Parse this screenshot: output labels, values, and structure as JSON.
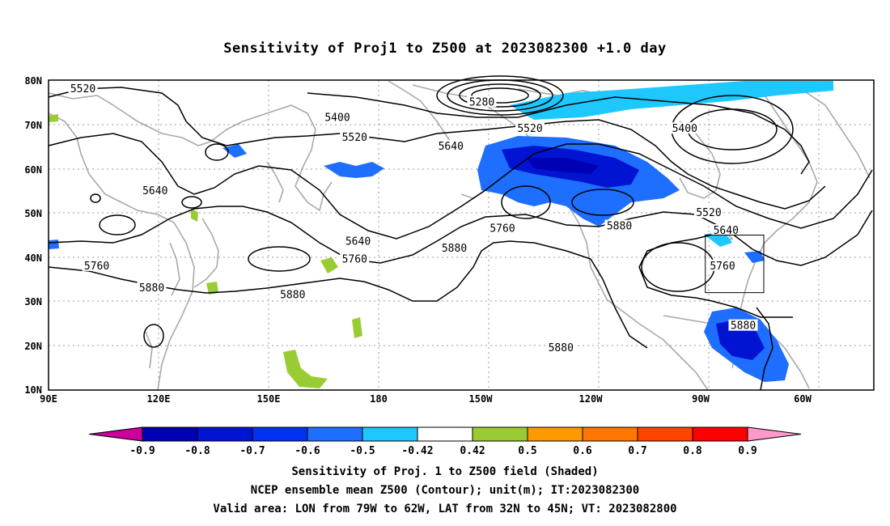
{
  "title": "Sensitivity of Proj1 to Z500 at 2023082300 +1.0 day",
  "axes": {
    "lat_labels": [
      "80N",
      "70N",
      "60N",
      "50N",
      "40N",
      "30N",
      "20N",
      "10N"
    ],
    "lon_labels": [
      "90E",
      "120E",
      "150E",
      "180",
      "150W",
      "120W",
      "90W",
      "60W"
    ]
  },
  "contour_labels": [
    {
      "text": "5520",
      "lon": 100,
      "lat": 78
    },
    {
      "text": "5400",
      "lon": 174,
      "lat": 71.5
    },
    {
      "text": "5280",
      "lon": 216,
      "lat": 75
    },
    {
      "text": "5520",
      "lon": 230,
      "lat": 69
    },
    {
      "text": "5400",
      "lon": 275,
      "lat": 69
    },
    {
      "text": "5520",
      "lon": 179,
      "lat": 67
    },
    {
      "text": "5640",
      "lon": 207,
      "lat": 65
    },
    {
      "text": "5640",
      "lon": 121,
      "lat": 55
    },
    {
      "text": "5520",
      "lon": 282,
      "lat": 50
    },
    {
      "text": "5880",
      "lon": 256,
      "lat": 47
    },
    {
      "text": "5640",
      "lon": 287,
      "lat": 46
    },
    {
      "text": "5760",
      "lon": 222,
      "lat": 46.5
    },
    {
      "text": "5640",
      "lon": 180,
      "lat": 43.5
    },
    {
      "text": "5880",
      "lon": 208,
      "lat": 42
    },
    {
      "text": "5760",
      "lon": 179,
      "lat": 39.5
    },
    {
      "text": "5760",
      "lon": 104,
      "lat": 38
    },
    {
      "text": "5760",
      "lon": 286,
      "lat": 38
    },
    {
      "text": "5880",
      "lon": 120,
      "lat": 33
    },
    {
      "text": "5880",
      "lon": 161,
      "lat": 31.5
    },
    {
      "text": "5880",
      "lon": 292,
      "lat": 24.5
    },
    {
      "text": "5880",
      "lon": 239,
      "lat": 19.5
    }
  ],
  "valid_area": {
    "lon_min": 281,
    "lon_max": 298,
    "lat_min": 32,
    "lat_max": 45
  },
  "colorbar": {
    "labels": [
      "-0.9",
      "-0.8",
      "-0.7",
      "-0.6",
      "-0.5",
      "-0.42",
      "0.42",
      "0.5",
      "0.6",
      "0.7",
      "0.8",
      "0.9"
    ],
    "colors": [
      "#cc0099",
      "#0000b4",
      "#0014d2",
      "#0032f0",
      "#1e6eff",
      "#1ec8ff",
      "#ffffff",
      "#99cc33",
      "#ff9900",
      "#ff7700",
      "#ff4400",
      "#ff0000",
      "#ff99cc"
    ]
  },
  "captions": [
    "Sensitivity of Proj. 1 to Z500 field (Shaded)",
    "NCEP ensemble mean Z500 (Contour); unit(m); IT:2023082300",
    "Valid area: LON from 79W to 62W, LAT from 32N to 45N; VT: 2023082800"
  ]
}
